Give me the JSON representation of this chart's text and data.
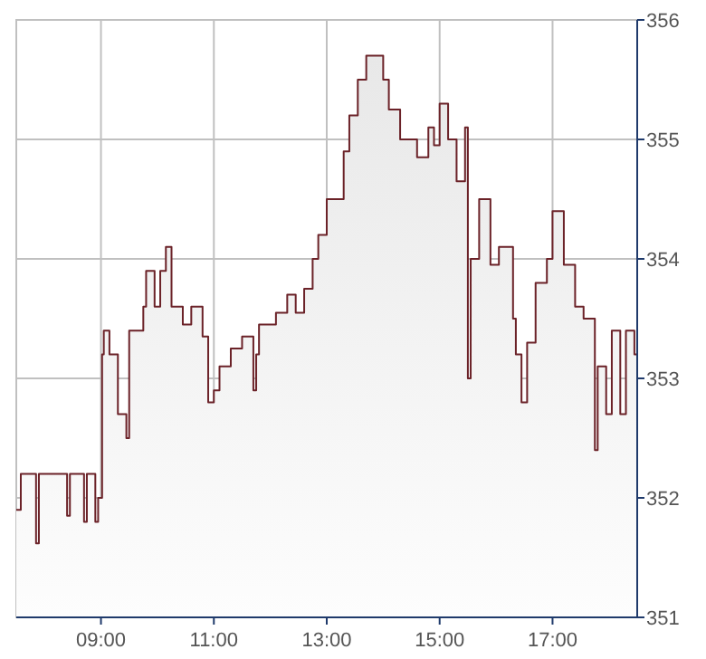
{
  "chart_data": {
    "type": "area",
    "xlim": [
      7.5,
      18.5
    ],
    "ylim": [
      351,
      356
    ],
    "xticks": [
      {
        "value": 9,
        "label": "09:00"
      },
      {
        "value": 11,
        "label": "11:00"
      },
      {
        "value": 13,
        "label": "13:00"
      },
      {
        "value": 15,
        "label": "15:00"
      },
      {
        "value": 17,
        "label": "17:00"
      }
    ],
    "yticks": [
      351,
      352,
      353,
      354,
      355,
      356
    ],
    "grid": true,
    "series": [
      {
        "color": "#6b2228",
        "x": [
          7.5,
          7.58,
          7.58,
          7.85,
          7.85,
          7.9,
          7.9,
          8.4,
          8.4,
          8.45,
          8.45,
          8.7,
          8.7,
          8.75,
          8.75,
          8.9,
          8.9,
          8.95,
          8.95,
          9.02,
          9.02,
          9.05,
          9.05,
          9.15,
          9.15,
          9.3,
          9.3,
          9.45,
          9.45,
          9.5,
          9.5,
          9.75,
          9.75,
          9.8,
          9.8,
          9.95,
          9.95,
          10.05,
          10.05,
          10.15,
          10.15,
          10.25,
          10.25,
          10.45,
          10.45,
          10.6,
          10.6,
          10.8,
          10.8,
          10.9,
          10.9,
          11.0,
          11.0,
          11.1,
          11.1,
          11.3,
          11.3,
          11.5,
          11.5,
          11.7,
          11.7,
          11.75,
          11.75,
          11.8,
          11.8,
          12.1,
          12.1,
          12.3,
          12.3,
          12.45,
          12.45,
          12.6,
          12.6,
          12.75,
          12.75,
          12.85,
          12.85,
          13.0,
          13.0,
          13.3,
          13.3,
          13.4,
          13.4,
          13.55,
          13.55,
          13.7,
          13.7,
          14.0,
          14.0,
          14.1,
          14.1,
          14.3,
          14.3,
          14.6,
          14.6,
          14.8,
          14.8,
          14.9,
          14.9,
          15.0,
          15.0,
          15.15,
          15.15,
          15.3,
          15.3,
          15.45,
          15.45,
          15.5,
          15.5,
          15.55,
          15.55,
          15.7,
          15.7,
          15.9,
          15.9,
          16.05,
          16.05,
          16.3,
          16.3,
          16.35,
          16.35,
          16.45,
          16.45,
          16.55,
          16.55,
          16.7,
          16.7,
          16.9,
          16.9,
          17.0,
          17.0,
          17.2,
          17.2,
          17.4,
          17.4,
          17.55,
          17.55,
          17.75,
          17.75,
          17.8,
          17.8,
          17.95,
          17.95,
          18.05,
          18.05,
          18.2,
          18.2,
          18.3,
          18.3,
          18.45,
          18.45,
          18.5,
          18.5
        ],
        "values": [
          351.9,
          351.9,
          352.2,
          352.2,
          351.62,
          351.62,
          352.2,
          352.2,
          351.85,
          351.85,
          352.2,
          352.2,
          351.8,
          351.8,
          352.2,
          352.2,
          351.8,
          351.8,
          352.0,
          352.0,
          353.2,
          353.2,
          353.4,
          353.4,
          353.2,
          353.2,
          352.7,
          352.7,
          352.5,
          352.5,
          353.4,
          353.4,
          353.6,
          353.6,
          353.9,
          353.9,
          353.6,
          353.6,
          353.9,
          353.9,
          354.1,
          354.1,
          353.6,
          353.6,
          353.45,
          353.45,
          353.6,
          353.6,
          353.35,
          353.35,
          352.8,
          352.8,
          352.9,
          352.9,
          353.1,
          353.1,
          353.25,
          353.25,
          353.35,
          353.35,
          352.9,
          352.9,
          353.2,
          353.2,
          353.45,
          353.45,
          353.55,
          353.55,
          353.7,
          353.7,
          353.55,
          353.55,
          353.75,
          353.75,
          354.0,
          354.0,
          354.2,
          354.2,
          354.5,
          354.5,
          354.9,
          354.9,
          355.2,
          355.2,
          355.5,
          355.5,
          355.7,
          355.7,
          355.5,
          355.5,
          355.25,
          355.25,
          355.0,
          355.0,
          354.85,
          354.85,
          355.1,
          355.1,
          354.95,
          354.95,
          355.3,
          355.3,
          355.0,
          355.0,
          354.65,
          354.65,
          355.1,
          355.1,
          353.0,
          353.0,
          354.0,
          354.0,
          354.5,
          354.5,
          353.95,
          353.95,
          354.1,
          354.1,
          353.5,
          353.5,
          353.2,
          353.2,
          352.8,
          352.8,
          353.3,
          353.3,
          353.8,
          353.8,
          354.0,
          354.0,
          354.4,
          354.4,
          353.95,
          353.95,
          353.6,
          353.6,
          353.5,
          353.5,
          352.4,
          352.4,
          353.1,
          353.1,
          352.7,
          352.7,
          353.4,
          353.4,
          352.7,
          352.7,
          353.4,
          353.4,
          353.2,
          353.2,
          353.1
        ]
      }
    ]
  }
}
